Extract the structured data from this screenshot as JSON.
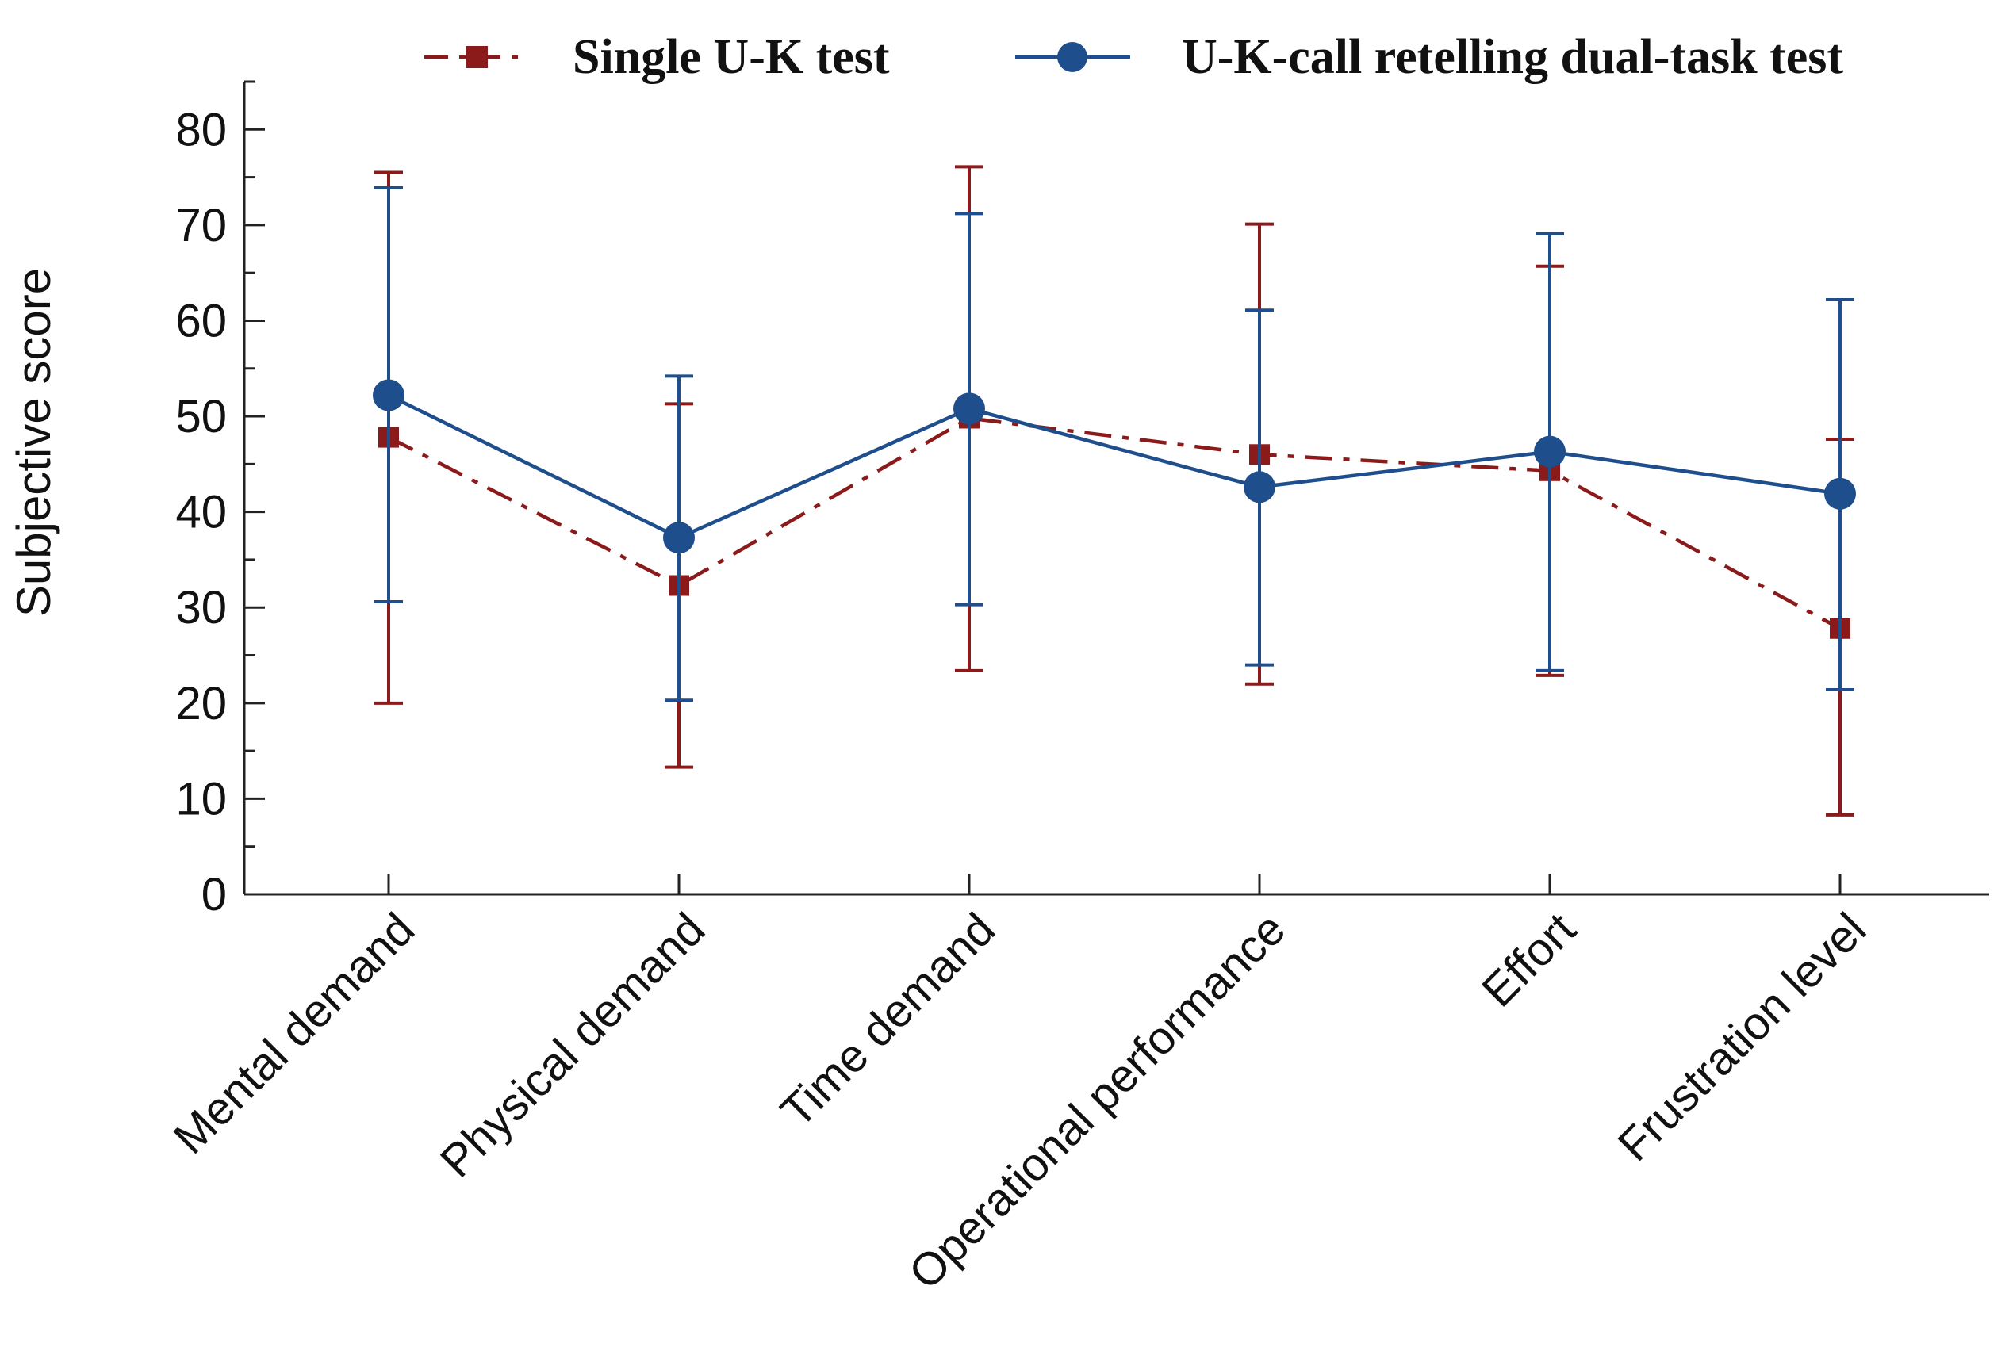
{
  "chart_data": {
    "type": "line",
    "title": "",
    "xlabel": "",
    "ylabel": "Subjective score",
    "ylim": [
      0,
      85
    ],
    "y_ticks": [
      "0",
      "10",
      "20",
      "30",
      "40",
      "50",
      "60",
      "70",
      "80"
    ],
    "y_tick_values": [
      0,
      10,
      20,
      30,
      40,
      50,
      60,
      70,
      80
    ],
    "categories": [
      "Mental demand",
      "Physical demand",
      "Time demand",
      "Operational performance",
      "Effort",
      "Frustration level"
    ],
    "legend_position": "top",
    "series": [
      {
        "name": "Single U-K test",
        "color": "#8B1A1A",
        "line_style": "dash-dot",
        "marker": "square",
        "values": [
          47.8,
          32.3,
          49.8,
          46.0,
          44.3,
          27.8
        ],
        "err_upper": [
          75.5,
          51.3,
          76.1,
          70.1,
          65.7,
          47.6
        ],
        "err_lower": [
          20.0,
          13.3,
          23.4,
          22.0,
          22.9,
          8.3
        ]
      },
      {
        "name": "U-K-call retelling dual-task test",
        "color": "#1F4E8C",
        "line_style": "solid",
        "marker": "circle",
        "values": [
          52.2,
          37.3,
          50.8,
          42.6,
          46.3,
          41.9
        ],
        "err_upper": [
          73.9,
          54.2,
          71.2,
          61.1,
          69.1,
          62.2
        ],
        "err_lower": [
          30.6,
          20.3,
          30.3,
          24.0,
          23.4,
          21.4
        ]
      }
    ]
  }
}
